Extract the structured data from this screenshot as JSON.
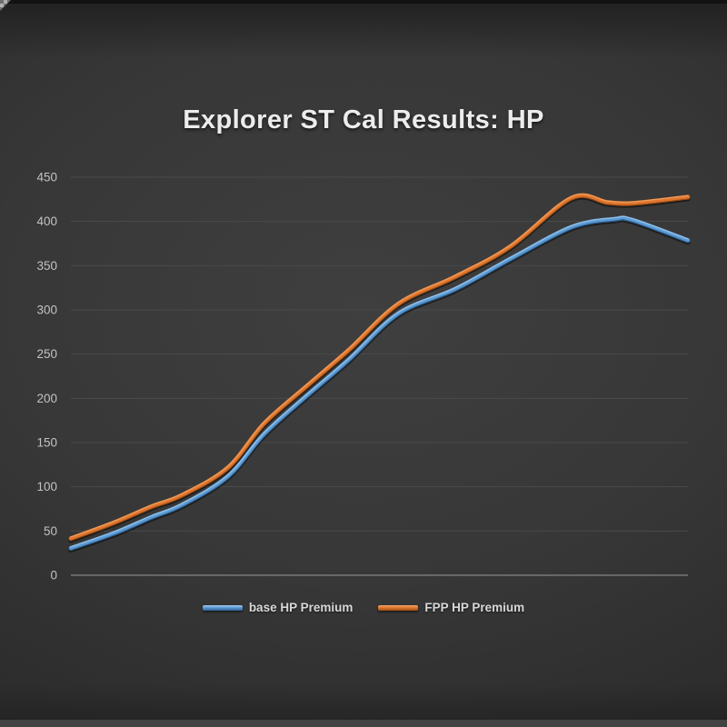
{
  "colors": {
    "background": "#373737",
    "top_strip": "#121212",
    "bottom_strip": "#434343",
    "gridline": "#4a4a4a",
    "axis_line": "#787878",
    "tick_label": "#c2c2c2",
    "title_text": "#ececec",
    "legend_text": "#d8d8d8",
    "series_blue": "#5b9bd5",
    "series_orange": "#e0762e"
  },
  "chart_data": {
    "type": "line",
    "title": "Explorer ST Cal Results: HP",
    "xlabel": "",
    "ylabel": "",
    "ylim": [
      0,
      450
    ],
    "yticks": [
      0,
      50,
      100,
      150,
      200,
      250,
      300,
      350,
      400,
      450
    ],
    "x_tick_labels_visible": false,
    "grid": "horizontal",
    "legend_position": "bottom-center",
    "note_x_axis": "no x-axis tick labels shown; x stored as 0-1 fraction of plot width",
    "series": [
      {
        "id": "base-hp-premium",
        "name": "base HP Premium",
        "color": "#5b9bd5",
        "highlight": "#a8cbe8",
        "dark": "#2e5f8f",
        "points": [
          [
            0.0,
            31
          ],
          [
            0.07,
            48
          ],
          [
            0.13,
            66
          ],
          [
            0.18,
            80
          ],
          [
            0.254,
            112
          ],
          [
            0.313,
            160
          ],
          [
            0.38,
            202
          ],
          [
            0.45,
            244
          ],
          [
            0.53,
            296
          ],
          [
            0.623,
            324
          ],
          [
            0.712,
            358
          ],
          [
            0.811,
            394
          ],
          [
            0.88,
            403
          ],
          [
            0.91,
            402
          ],
          [
            1.0,
            379
          ]
        ]
      },
      {
        "id": "fpp-hp-premium",
        "name": "FPP HP Premium",
        "color": "#e0762e",
        "highlight": "#f2a96b",
        "dark": "#9c4d15",
        "points": [
          [
            0.0,
            42
          ],
          [
            0.07,
            60
          ],
          [
            0.13,
            78
          ],
          [
            0.18,
            91
          ],
          [
            0.254,
            122
          ],
          [
            0.313,
            172
          ],
          [
            0.38,
            213
          ],
          [
            0.45,
            255
          ],
          [
            0.53,
            307
          ],
          [
            0.623,
            338
          ],
          [
            0.712,
            372
          ],
          [
            0.811,
            427
          ],
          [
            0.87,
            422
          ],
          [
            0.91,
            421
          ],
          [
            1.0,
            428
          ]
        ]
      }
    ]
  }
}
